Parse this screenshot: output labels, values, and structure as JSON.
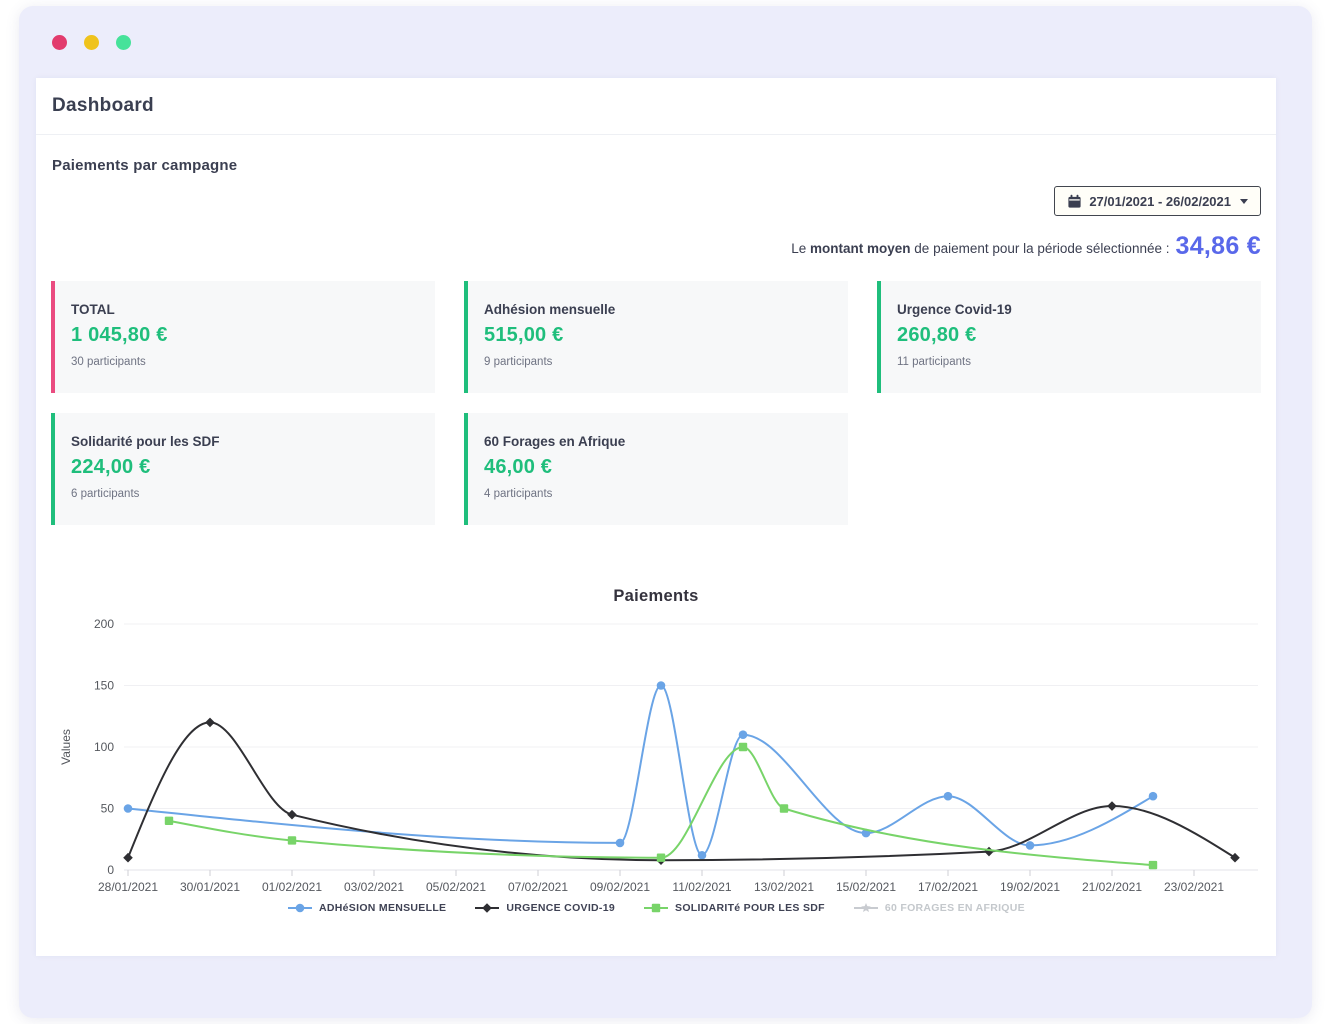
{
  "window": {
    "traffic_lights": [
      "#e23b6d",
      "#efc31c",
      "#46e29a"
    ]
  },
  "header": {
    "title": "Dashboard"
  },
  "section": {
    "title": "Paiements par campagne"
  },
  "date_filter": {
    "label": "27/01/2021 - 26/02/2021",
    "icon": "calendar-icon"
  },
  "average": {
    "prefix": "Le ",
    "bold": "montant moyen",
    "suffix": " de paiement pour la période sélectionnée : ",
    "value": "34,86 €"
  },
  "cards": [
    {
      "title": "TOTAL",
      "amount": "1 045,80 €",
      "participants": "30 participants",
      "accent": "#ea4b80"
    },
    {
      "title": "Adhésion mensuelle",
      "amount": "515,00 €",
      "participants": "9 participants",
      "accent": "#1fbe7c"
    },
    {
      "title": "Urgence Covid-19",
      "amount": "260,80 €",
      "participants": "11 participants",
      "accent": "#1fbe7c"
    },
    {
      "title": "Solidarité pour les SDF",
      "amount": "224,00 €",
      "participants": "6 participants",
      "accent": "#1fbe7c"
    },
    {
      "title": "60 Forages en Afrique",
      "amount": "46,00 €",
      "participants": "4 participants",
      "accent": "#1fbe7c"
    }
  ],
  "chart_data": {
    "type": "line",
    "title": "Paiements",
    "xlabel": "",
    "ylabel": "Values",
    "ylim": [
      0,
      200
    ],
    "yticks": [
      0,
      50,
      100,
      150,
      200
    ],
    "grid": true,
    "legend_position": "bottom",
    "x_ticks": [
      "28/01/2021",
      "30/01/2021",
      "01/02/2021",
      "03/02/2021",
      "05/02/2021",
      "07/02/2021",
      "09/02/2021",
      "11/02/2021",
      "13/02/2021",
      "15/02/2021",
      "17/02/2021",
      "19/02/2021",
      "21/02/2021",
      "23/02/2021"
    ],
    "series": [
      {
        "name": "ADHéSION MENSUELLE",
        "color": "#6aa4e6",
        "marker": "circle",
        "hidden": false,
        "points": [
          {
            "date": "28/01/2021",
            "value": 50
          },
          {
            "date": "09/02/2021",
            "value": 22
          },
          {
            "date": "10/02/2021",
            "value": 150
          },
          {
            "date": "11/02/2021",
            "value": 12
          },
          {
            "date": "12/02/2021",
            "value": 110
          },
          {
            "date": "15/02/2021",
            "value": 30
          },
          {
            "date": "17/02/2021",
            "value": 60
          },
          {
            "date": "19/02/2021",
            "value": 20
          },
          {
            "date": "22/02/2021",
            "value": 60
          }
        ]
      },
      {
        "name": "URGENCE COVID-19",
        "color": "#2f2f33",
        "marker": "diamond",
        "hidden": false,
        "points": [
          {
            "date": "28/01/2021",
            "value": 10
          },
          {
            "date": "30/01/2021",
            "value": 120
          },
          {
            "date": "01/02/2021",
            "value": 45
          },
          {
            "date": "10/02/2021",
            "value": 8
          },
          {
            "date": "18/02/2021",
            "value": 15
          },
          {
            "date": "21/02/2021",
            "value": 52
          },
          {
            "date": "24/02/2021",
            "value": 10
          }
        ]
      },
      {
        "name": "SOLIDARITé POUR LES SDF",
        "color": "#78d469",
        "marker": "square",
        "hidden": false,
        "points": [
          {
            "date": "29/01/2021",
            "value": 40
          },
          {
            "date": "01/02/2021",
            "value": 24
          },
          {
            "date": "10/02/2021",
            "value": 10
          },
          {
            "date": "12/02/2021",
            "value": 100
          },
          {
            "date": "13/02/2021",
            "value": 50
          },
          {
            "date": "22/02/2021",
            "value": 4
          }
        ]
      },
      {
        "name": "60 FORAGES EN AFRIQUE",
        "color": "#c8cbd0",
        "marker": "star",
        "hidden": true,
        "points": []
      }
    ]
  }
}
